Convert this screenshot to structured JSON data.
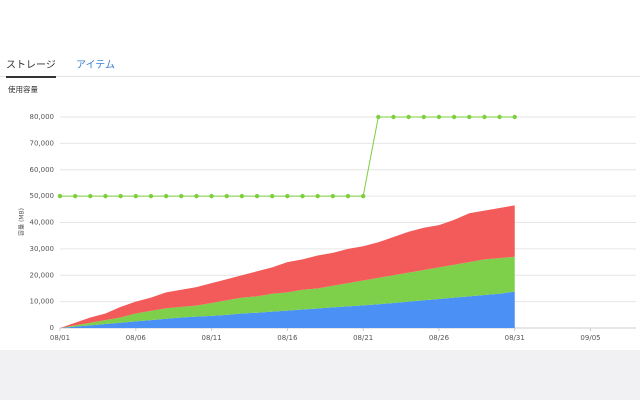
{
  "tabs": [
    "ストレージ",
    "アイテム"
  ],
  "chart_data": {
    "type": "stacked-area",
    "title": "使用容量",
    "y_label": "容量 (MB)",
    "x": [
      0,
      1,
      2,
      3,
      4,
      5,
      6,
      7,
      8,
      9,
      10,
      11,
      12,
      13,
      14,
      15,
      16,
      17,
      18,
      19,
      20,
      21,
      22,
      23,
      24,
      25,
      26,
      27,
      28,
      29,
      30
    ],
    "xlim": [
      0,
      38
    ],
    "xticks": [
      {
        "value": 0,
        "label": "08/01"
      },
      {
        "value": 5,
        "label": "08/06"
      },
      {
        "value": 10,
        "label": "08/11"
      },
      {
        "value": 15,
        "label": "08/16"
      },
      {
        "value": 20,
        "label": "08/21"
      },
      {
        "value": 25,
        "label": "08/26"
      },
      {
        "value": 30,
        "label": "08/31"
      },
      {
        "value": 35,
        "label": "09/05"
      }
    ],
    "ylim": [
      0,
      80000
    ],
    "yticks": [
      0,
      {
        "value": 10000,
        "label": "10,000"
      },
      {
        "value": 20000,
        "label": "20,000"
      },
      {
        "value": 30000,
        "label": "30,000"
      },
      {
        "value": 40000,
        "label": "40,000"
      },
      {
        "value": 50000,
        "label": "50,000"
      },
      {
        "value": 60000,
        "label": "60,000"
      },
      {
        "value": 70000,
        "label": "70,000"
      },
      {
        "value": 80000,
        "label": "80,000"
      }
    ],
    "grid": true,
    "series": [
      {
        "color": "#4a90f5",
        "values": [
          0,
          500,
          1000,
          1500,
          2000,
          2500,
          3000,
          3500,
          4000,
          4300,
          4600,
          5000,
          5500,
          5800,
          6200,
          6600,
          7000,
          7400,
          7800,
          8200,
          8600,
          9000,
          9500,
          10000,
          10500,
          11000,
          11500,
          12000,
          12500,
          13000,
          13800
        ]
      },
      {
        "color": "#7ed04b",
        "values": [
          0,
          500,
          1000,
          1500,
          2000,
          3000,
          3500,
          4000,
          4000,
          4200,
          4900,
          5500,
          6000,
          6200,
          6800,
          6900,
          7500,
          7600,
          8200,
          8800,
          9400,
          10000,
          10500,
          11000,
          11500,
          12000,
          12500,
          13000,
          13500,
          13500,
          13200
        ]
      },
      {
        "color": "#f35b5b",
        "values": [
          0,
          1000,
          2000,
          2500,
          4000,
          4500,
          5000,
          6000,
          6500,
          7000,
          7500,
          8000,
          8500,
          9500,
          10000,
          11500,
          11500,
          12500,
          12500,
          13000,
          13000,
          13500,
          14500,
          15500,
          16000,
          16000,
          17000,
          18500,
          18500,
          19000,
          19500
        ]
      },
      {
        "type": "line",
        "color": "#7dcf3d",
        "values": [
          50000,
          50000,
          50000,
          50000,
          50000,
          50000,
          50000,
          50000,
          50000,
          50000,
          50000,
          50000,
          50000,
          50000,
          50000,
          50000,
          50000,
          50000,
          50000,
          50000,
          50000,
          80000,
          80000,
          80000,
          80000,
          80000,
          80000,
          80000,
          80000,
          80000,
          80000
        ]
      }
    ]
  }
}
